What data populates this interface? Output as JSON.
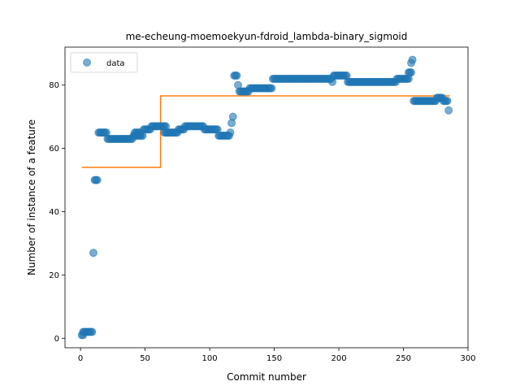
{
  "chart_data": {
    "type": "scatter",
    "title": "me-echeung-moemoekyun-fdroid_lambda-binary_sigmoid",
    "xlabel": "Commit number",
    "ylabel": "Number of instance of a feature",
    "xlim": [
      -12,
      300
    ],
    "ylim": [
      -3,
      92
    ],
    "xticks": [
      "0",
      "50",
      "100",
      "150",
      "200",
      "250",
      "300"
    ],
    "yticks": [
      "0",
      "20",
      "40",
      "60",
      "80"
    ],
    "grid": false,
    "legend": {
      "position": "top-left",
      "entries": [
        "data"
      ]
    },
    "colors": {
      "data": "#1f77b4",
      "fit": "#ff7f0e"
    },
    "series": [
      {
        "name": "data",
        "kind": "scatter",
        "segments": [
          [
            1,
            2,
            1
          ],
          [
            2,
            3,
            2
          ],
          [
            4,
            9,
            2
          ],
          [
            10,
            10,
            27
          ],
          [
            11,
            13,
            50
          ],
          [
            14,
            18,
            65
          ],
          [
            19,
            20,
            65
          ],
          [
            21,
            40,
            63
          ],
          [
            41,
            48,
            64
          ],
          [
            42,
            46,
            65
          ],
          [
            49,
            51,
            66
          ],
          [
            52,
            54,
            66
          ],
          [
            55,
            66,
            67
          ],
          [
            65,
            75,
            65
          ],
          [
            76,
            80,
            66
          ],
          [
            81,
            95,
            67
          ],
          [
            96,
            106,
            66
          ],
          [
            107,
            113,
            64
          ],
          [
            114,
            115,
            64
          ],
          [
            116,
            116,
            65
          ],
          [
            117,
            117,
            68
          ],
          [
            118,
            118,
            70
          ],
          [
            119,
            121,
            83
          ],
          [
            122,
            122,
            80
          ],
          [
            123,
            130,
            78
          ],
          [
            131,
            148,
            79
          ],
          [
            149,
            194,
            82
          ],
          [
            195,
            195,
            81
          ],
          [
            196,
            206,
            83
          ],
          [
            207,
            244,
            81
          ],
          [
            245,
            254,
            82
          ],
          [
            254,
            256,
            84
          ],
          [
            256,
            256,
            87
          ],
          [
            257,
            257,
            88
          ],
          [
            258,
            275,
            75
          ],
          [
            276,
            280,
            76
          ],
          [
            281,
            284,
            75
          ],
          [
            285,
            285,
            72
          ]
        ]
      },
      {
        "name": "fit",
        "kind": "line",
        "x": [
          1,
          62,
          62,
          286
        ],
        "y": [
          54,
          54,
          76.6,
          76.6
        ]
      }
    ]
  }
}
